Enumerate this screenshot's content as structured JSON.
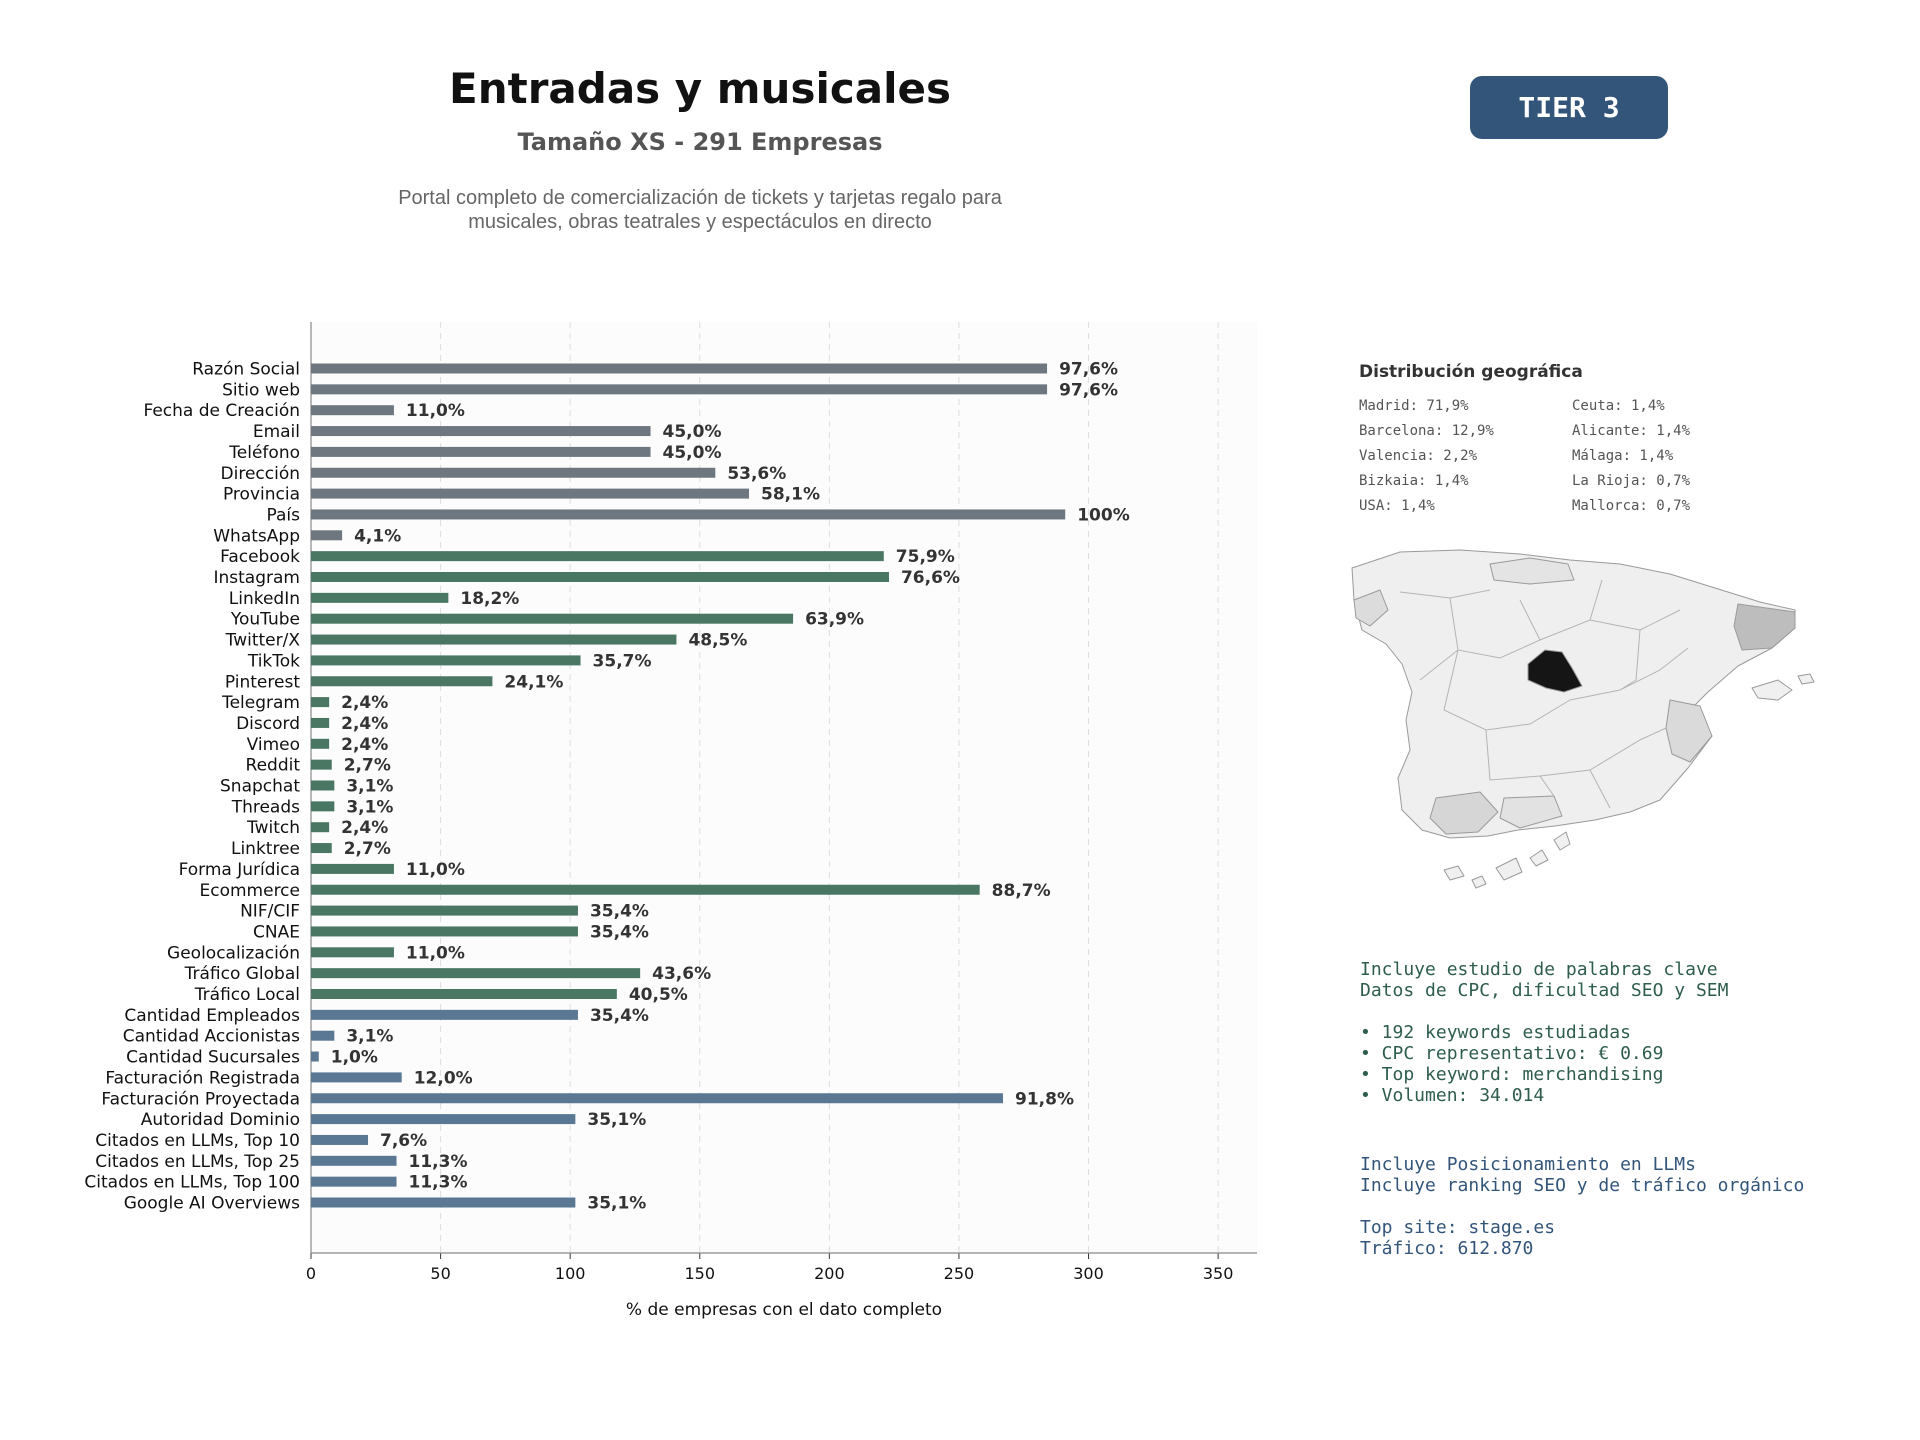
{
  "header": {
    "title": "Entradas y musicales",
    "subtitle": "Tamaño XS - 291 Empresas",
    "description_lines": [
      "Portal completo de comercialización de tickets y tarjetas regalo para",
      "musicales, obras teatrales y espectáculos en directo"
    ],
    "tier_badge": "TIER 3"
  },
  "chart_data": {
    "type": "bar",
    "orientation": "horizontal",
    "xlabel": "% de empresas con el dato completo",
    "xlim": [
      0,
      365
    ],
    "xticks": [
      0,
      50,
      100,
      150,
      200,
      250,
      300,
      350
    ],
    "grid": "vertical dashed",
    "categories": [
      "Razón Social",
      "Sitio web",
      "Fecha de Creación",
      "Email",
      "Teléfono",
      "Dirección",
      "Provincia",
      "País",
      "WhatsApp",
      "Facebook",
      "Instagram",
      "LinkedIn",
      "YouTube",
      "Twitter/X",
      "TikTok",
      "Pinterest",
      "Telegram",
      "Discord",
      "Vimeo",
      "Reddit",
      "Snapchat",
      "Threads",
      "Twitch",
      "Linktree",
      "Forma Jurídica",
      "Ecommerce",
      "NIF/CIF",
      "CNAE",
      "Geolocalización",
      "Tráfico Global",
      "Tráfico Local",
      "Cantidad Empleados",
      "Cantidad Accionistas",
      "Cantidad Sucursales",
      "Facturación Registrada",
      "Facturación Proyectada",
      "Autoridad Dominio",
      "Citados en LLMs, Top 10",
      "Citados en LLMs, Top 25",
      "Citados en LLMs, Top 100",
      "Google AI Overviews"
    ],
    "values": [
      284,
      284,
      32,
      131,
      131,
      156,
      169,
      291,
      12,
      221,
      223,
      53,
      186,
      141,
      104,
      70,
      7,
      7,
      7,
      8,
      9,
      9,
      7,
      8,
      32,
      258,
      103,
      103,
      32,
      127,
      118,
      103,
      9,
      3,
      35,
      267,
      102,
      22,
      33,
      33,
      102
    ],
    "labels": [
      "97,6%",
      "97,6%",
      "11,0%",
      "45,0%",
      "45,0%",
      "53,6%",
      "58,1%",
      "100%",
      "4,1%",
      "75,9%",
      "76,6%",
      "18,2%",
      "63,9%",
      "48,5%",
      "35,7%",
      "24,1%",
      "2,4%",
      "2,4%",
      "2,4%",
      "2,7%",
      "3,1%",
      "3,1%",
      "2,4%",
      "2,7%",
      "11,0%",
      "88,7%",
      "35,4%",
      "35,4%",
      "11,0%",
      "43,6%",
      "40,5%",
      "35,4%",
      "3,1%",
      "1,0%",
      "12,0%",
      "91,8%",
      "35,1%",
      "7,6%",
      "11,3%",
      "11,3%",
      "35,1%"
    ],
    "groups": [
      "gray",
      "gray",
      "gray",
      "gray",
      "gray",
      "gray",
      "gray",
      "gray",
      "gray",
      "green",
      "green",
      "green",
      "green",
      "green",
      "green",
      "green",
      "green",
      "green",
      "green",
      "green",
      "green",
      "green",
      "green",
      "green",
      "green",
      "green",
      "green",
      "green",
      "green",
      "green",
      "green",
      "blue",
      "blue",
      "blue",
      "blue",
      "blue",
      "blue",
      "blue",
      "blue",
      "blue",
      "blue"
    ],
    "colors": {
      "gray": "#6e7780",
      "green": "#4a7764",
      "blue": "#5a7893"
    }
  },
  "geo": {
    "title": "Distribución geográfica",
    "items": [
      "Madrid: 71,9%",
      "Ceuta: 1,4%",
      "Barcelona: 12,9%",
      "Alicante: 1,4%",
      "Valencia: 2,2%",
      "Málaga: 1,4%",
      "Bizkaia: 1,4%",
      "La Rioja: 0,7%",
      "USA: 1,4%",
      "Mallorca: 0,7%"
    ]
  },
  "seo": {
    "lines": [
      "Incluye estudio de palabras clave",
      "Datos de CPC, dificultad SEO y SEM",
      "",
      "• 192 keywords estudiadas",
      "• CPC representativo: € 0.69",
      "• Top keyword: merchandising",
      "• Volumen: 34.014"
    ]
  },
  "llm": {
    "lines": [
      "Incluye Posicionamiento en LLMs",
      "Incluye ranking SEO y de tráfico orgánico",
      "",
      "Top site: stage.es",
      "Tráfico: 612.870"
    ]
  }
}
